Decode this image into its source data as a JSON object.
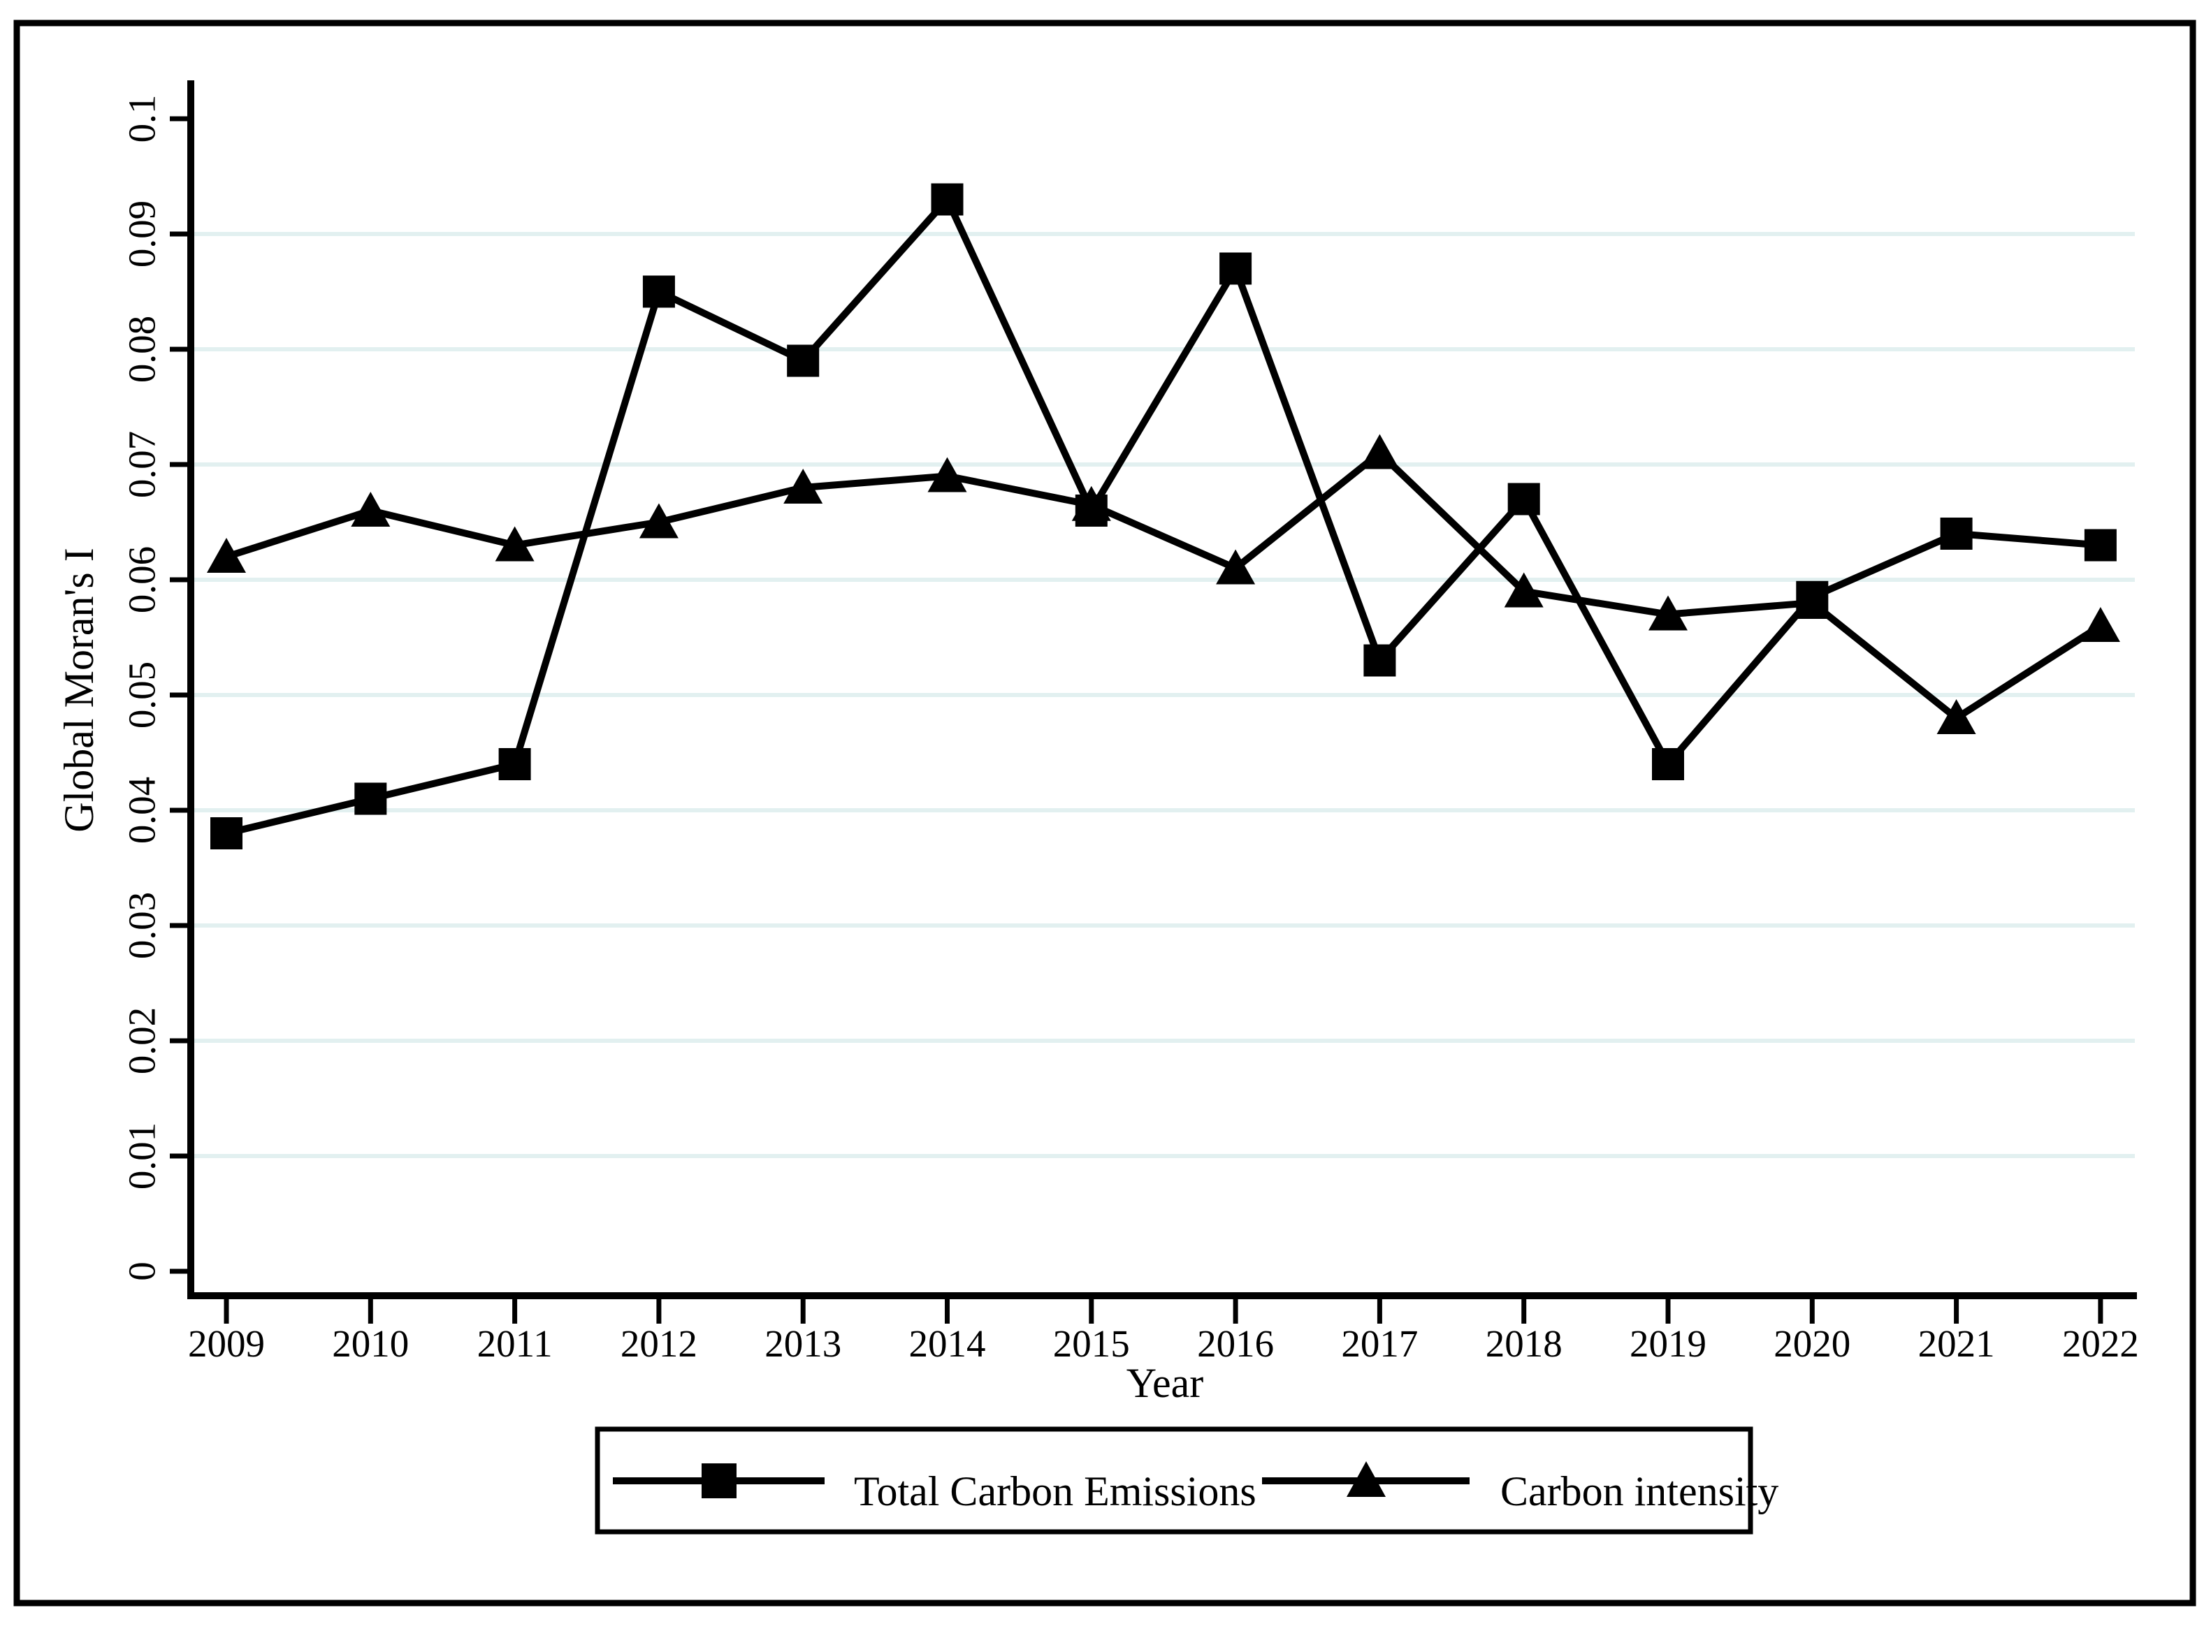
{
  "figure": {
    "colors": {
      "background": "#ffffff",
      "frame_border": "#000000",
      "axis": "#000000",
      "gridline": "#e2f0f0",
      "series_line": "#000000",
      "marker_fill": "#000000",
      "legend_border": "#000000"
    }
  },
  "chart_data": {
    "type": "line",
    "title": "",
    "xlabel": "Year",
    "ylabel": "Global Moran's I",
    "categories": [
      "2009",
      "2010",
      "2011",
      "2012",
      "2013",
      "2014",
      "2015",
      "2016",
      "2017",
      "2018",
      "2019",
      "2020",
      "2021",
      "2022"
    ],
    "series": [
      {
        "name": "Total Carbon Emissions",
        "marker": "square",
        "values": [
          0.038,
          0.041,
          0.044,
          0.085,
          0.079,
          0.093,
          0.066,
          0.087,
          0.053,
          0.067,
          0.044,
          0.0585,
          0.064,
          0.063
        ]
      },
      {
        "name": "Carbon intensity",
        "marker": "triangle",
        "values": [
          0.062,
          0.066,
          0.063,
          0.065,
          0.068,
          0.069,
          0.0665,
          0.061,
          0.071,
          0.059,
          0.057,
          0.058,
          0.048,
          0.056
        ]
      }
    ],
    "y_ticks": [
      0,
      0.01,
      0.02,
      0.03,
      0.04,
      0.05,
      0.06,
      0.07,
      0.08,
      0.09,
      0.1
    ],
    "y_tick_labels": [
      "0",
      "0.01",
      "0.02",
      "0.03",
      "0.04",
      "0.05",
      "0.06",
      "0.07",
      "0.08",
      "0.09",
      "0.1"
    ],
    "ylim": [
      0,
      0.1
    ],
    "grid": "horizontal-on",
    "legend_position": "bottom-center"
  }
}
